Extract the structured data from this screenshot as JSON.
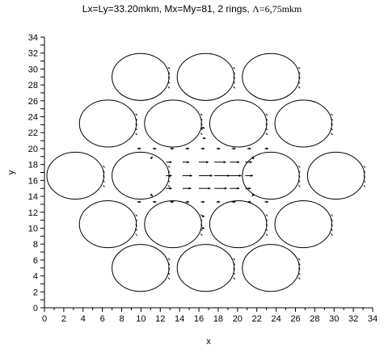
{
  "title_main": "Lx=Ly=33.20mkm, Mx=My=81, 2 rings, ",
  "title_symbol": "Λ=6,75mkm",
  "chart_data": {
    "type": "scatter",
    "title": "Lx=Ly=33.20mkm, Mx=My=81, 2 rings, Λ=6,75mkm",
    "xlabel": "x",
    "ylabel": "y",
    "xlim": [
      0,
      34
    ],
    "ylim": [
      0,
      34
    ],
    "xticks": [
      "0",
      "2",
      "4",
      "6",
      "8",
      "10",
      "12",
      "14",
      "16",
      "18",
      "20",
      "22",
      "24",
      "26",
      "28",
      "30",
      "32",
      "34"
    ],
    "yticks": [
      "0",
      "1",
      "2",
      "3",
      "4",
      "5",
      "6",
      "7",
      "8",
      "9",
      "10",
      "11",
      "12",
      "13",
      "14",
      "15",
      "16",
      "17",
      "18",
      "19",
      "20",
      "21",
      "22",
      "23",
      "24",
      "25",
      "26",
      "27",
      "28",
      "29",
      "30",
      "31",
      "32",
      "33",
      "34"
    ],
    "ytick_labels_shown": [
      "0",
      "2",
      "4",
      "6",
      "8",
      "10",
      "12",
      "14",
      "16",
      "18",
      "20",
      "22",
      "24",
      "26",
      "28",
      "30",
      "32",
      "34"
    ],
    "holes": {
      "pitch": 6.75,
      "rx": 2.95,
      "ry": 2.95,
      "centers": [
        [
          9.95,
          29.0
        ],
        [
          16.7,
          29.0
        ],
        [
          23.45,
          29.0
        ],
        [
          6.57,
          23.15
        ],
        [
          13.32,
          23.15
        ],
        [
          20.07,
          23.15
        ],
        [
          26.82,
          23.15
        ],
        [
          3.2,
          16.6
        ],
        [
          9.95,
          16.6
        ],
        [
          23.45,
          16.6
        ],
        [
          30.2,
          16.6
        ],
        [
          6.57,
          10.5
        ],
        [
          13.32,
          10.5
        ],
        [
          20.07,
          10.5
        ],
        [
          26.82,
          10.5
        ],
        [
          9.95,
          5.0
        ],
        [
          16.7,
          5.0
        ],
        [
          23.45,
          5.0
        ]
      ]
    },
    "field_arrows": [
      {
        "x": 9.6,
        "y": 20.0,
        "dx": 0.4,
        "dy": 0
      },
      {
        "x": 11.2,
        "y": 20.0,
        "dx": 0.4,
        "dy": 0
      },
      {
        "x": 13.0,
        "y": 20.0,
        "dx": 0.4,
        "dy": 0
      },
      {
        "x": 14.6,
        "y": 20.0,
        "dx": 0.4,
        "dy": 0
      },
      {
        "x": 16.2,
        "y": 20.0,
        "dx": 0.4,
        "dy": 0
      },
      {
        "x": 17.8,
        "y": 20.0,
        "dx": 0.4,
        "dy": 0
      },
      {
        "x": 19.4,
        "y": 20.0,
        "dx": 0.4,
        "dy": 0
      },
      {
        "x": 21.0,
        "y": 20.0,
        "dx": 0.4,
        "dy": 0
      },
      {
        "x": 22.8,
        "y": 20.0,
        "dx": 0.4,
        "dy": 0
      },
      {
        "x": 16.2,
        "y": 22.6,
        "dx": 0.4,
        "dy": 0
      },
      {
        "x": 16.4,
        "y": 21.3,
        "dx": 0.3,
        "dy": 0
      },
      {
        "x": 12.6,
        "y": 18.3,
        "dx": 0.6,
        "dy": 0
      },
      {
        "x": 14.3,
        "y": 18.3,
        "dx": 0.7,
        "dy": 0
      },
      {
        "x": 16.0,
        "y": 18.3,
        "dx": 1.0,
        "dy": 0
      },
      {
        "x": 17.6,
        "y": 18.3,
        "dx": 1.2,
        "dy": 0
      },
      {
        "x": 19.2,
        "y": 18.3,
        "dx": 1.0,
        "dy": 0
      },
      {
        "x": 20.8,
        "y": 18.3,
        "dx": 0.7,
        "dy": 0
      },
      {
        "x": 12.6,
        "y": 16.6,
        "dx": 0.6,
        "dy": 0
      },
      {
        "x": 14.3,
        "y": 16.6,
        "dx": 1.0,
        "dy": 0
      },
      {
        "x": 16.0,
        "y": 16.6,
        "dx": 1.4,
        "dy": 0
      },
      {
        "x": 17.6,
        "y": 16.6,
        "dx": 1.6,
        "dy": 0
      },
      {
        "x": 19.2,
        "y": 16.6,
        "dx": 1.2,
        "dy": 0
      },
      {
        "x": 20.8,
        "y": 16.6,
        "dx": 0.8,
        "dy": 0
      },
      {
        "x": 12.6,
        "y": 15.0,
        "dx": 0.6,
        "dy": 0
      },
      {
        "x": 14.3,
        "y": 15.0,
        "dx": 0.9,
        "dy": 0
      },
      {
        "x": 16.0,
        "y": 15.0,
        "dx": 1.2,
        "dy": 0
      },
      {
        "x": 17.6,
        "y": 15.0,
        "dx": 1.3,
        "dy": 0
      },
      {
        "x": 19.2,
        "y": 15.0,
        "dx": 1.0,
        "dy": 0
      },
      {
        "x": 20.8,
        "y": 15.0,
        "dx": 0.6,
        "dy": 0
      },
      {
        "x": 9.6,
        "y": 13.3,
        "dx": 0.4,
        "dy": 0
      },
      {
        "x": 11.2,
        "y": 13.3,
        "dx": 0.4,
        "dy": 0
      },
      {
        "x": 13.0,
        "y": 13.3,
        "dx": 0.4,
        "dy": 0
      },
      {
        "x": 14.6,
        "y": 13.3,
        "dx": 0.4,
        "dy": 0
      },
      {
        "x": 16.2,
        "y": 13.3,
        "dx": 0.4,
        "dy": 0
      },
      {
        "x": 17.8,
        "y": 13.3,
        "dx": 0.4,
        "dy": 0
      },
      {
        "x": 19.4,
        "y": 13.3,
        "dx": 0.4,
        "dy": 0
      },
      {
        "x": 21.0,
        "y": 13.3,
        "dx": 0.4,
        "dy": 0
      },
      {
        "x": 22.8,
        "y": 13.3,
        "dx": 0.4,
        "dy": 0
      },
      {
        "x": 16.3,
        "y": 11.5,
        "dx": 0.3,
        "dy": 0
      },
      {
        "x": 16.3,
        "y": 10.0,
        "dx": 0.3,
        "dy": 0
      },
      {
        "x": 11.0,
        "y": 18.7,
        "dx": 0.2,
        "dy": 0.3
      },
      {
        "x": 11.0,
        "y": 14.3,
        "dx": 0.2,
        "dy": -0.3
      },
      {
        "x": 21.7,
        "y": 18.7,
        "dx": -0.2,
        "dy": 0.3
      },
      {
        "x": 21.7,
        "y": 14.3,
        "dx": -0.2,
        "dy": -0.3
      }
    ],
    "grid": false,
    "legend": "none"
  }
}
